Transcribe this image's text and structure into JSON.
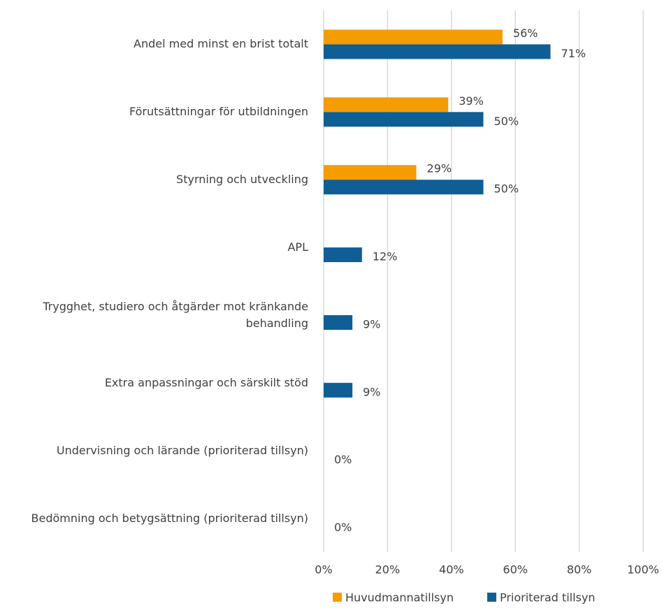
{
  "chart_data": {
    "type": "bar",
    "orientation": "horizontal",
    "categories": [
      "Andel med minst en brist totalt",
      "Förutsättningar för utbildningen",
      "Styrning och utveckling",
      "APL",
      "Trygghet, studiero och åtgärder mot kränkande behandling",
      "Extra anpassningar och särskilt stöd",
      "Undervisning och lärande (prioriterad tillsyn)",
      "Bedömning och betygsättning (prioriterad tillsyn)"
    ],
    "series": [
      {
        "name": "Huvudmannatillsyn",
        "color": "#f59c00",
        "values": [
          56,
          39,
          29,
          null,
          null,
          null,
          null,
          null
        ],
        "value_labels": [
          "56%",
          "39%",
          "29%",
          null,
          null,
          null,
          null,
          null
        ]
      },
      {
        "name": "Prioriterad tillsyn",
        "color": "#0f5f96",
        "values": [
          71,
          50,
          50,
          12,
          9,
          9,
          0,
          0
        ],
        "value_labels": [
          "71%",
          "50%",
          "50%",
          "12%",
          "9%",
          "9%",
          "0%",
          "0%"
        ]
      }
    ],
    "xlim": [
      0,
      100
    ],
    "xticks": [
      {
        "value": 0,
        "label": "0%"
      },
      {
        "value": 20,
        "label": "20%"
      },
      {
        "value": 40,
        "label": "40%"
      },
      {
        "value": 60,
        "label": "60%"
      },
      {
        "value": 80,
        "label": "80%"
      },
      {
        "value": 100,
        "label": "100%"
      }
    ],
    "grid": true,
    "legend": "bottom"
  }
}
